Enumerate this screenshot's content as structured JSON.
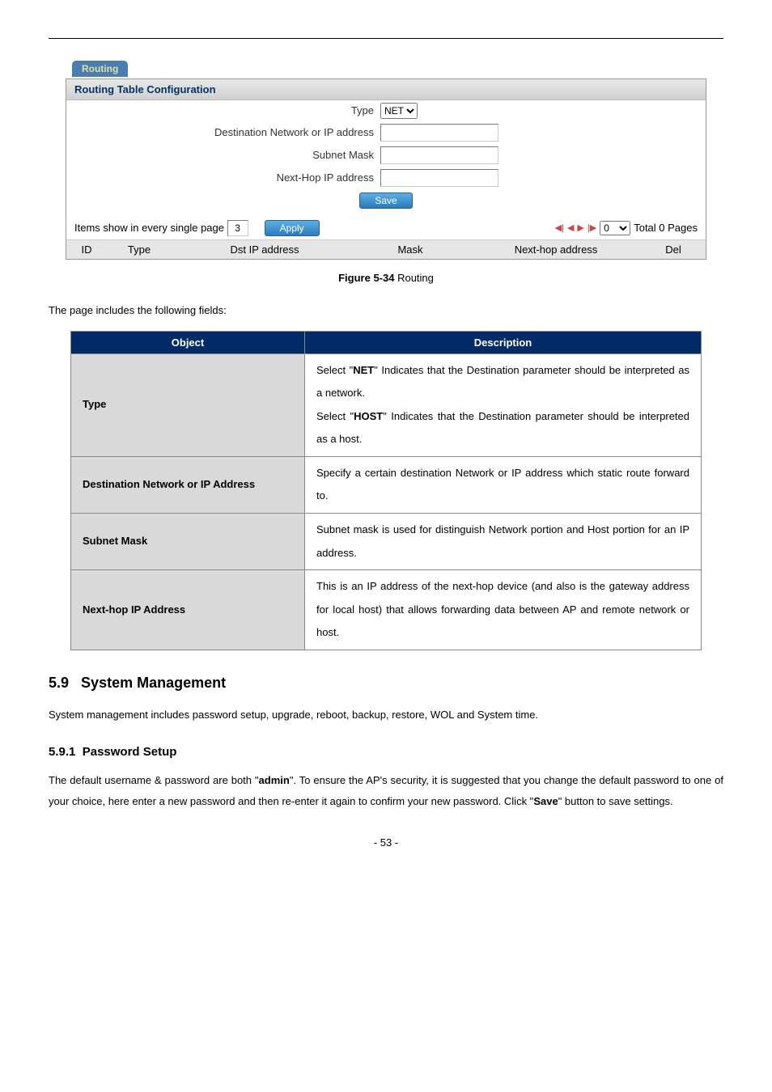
{
  "panel": {
    "tab": "Routing",
    "header": "Routing Table Configuration",
    "fields": {
      "type_label": "Type",
      "type_value": "NET",
      "dest_label": "Destination Network or IP address",
      "subnet_label": "Subnet Mask",
      "nexthop_label": "Next-Hop IP address"
    },
    "save_label": "Save",
    "pager": {
      "items_text_prefix": "Items show in every single page",
      "items_value": "3",
      "apply_label": "Apply",
      "page_select": "0",
      "total_text": "Total 0 Pages"
    },
    "table_headers": {
      "id": "ID",
      "type": "Type",
      "dst": "Dst IP address",
      "mask": "Mask",
      "nexthop": "Next-hop address",
      "del": "Del"
    }
  },
  "figure_caption_bold": "Figure 5-34",
  "figure_caption_rest": " Routing",
  "intro_text": "The page includes the following fields:",
  "desc_table": {
    "head_object": "Object",
    "head_desc": "Description",
    "rows": [
      {
        "k": "Type",
        "v": "Select \"<b>NET</b>\" Indicates that the Destination parameter should be interpreted as a network.<br>Select \"<b>HOST</b>\" Indicates that the Destination parameter should be interpreted as a host."
      },
      {
        "k": "Destination Network or IP Address",
        "v": "Specify a certain destination Network or IP address which static route forward to."
      },
      {
        "k": "Subnet Mask",
        "v": "Subnet mask is used for distinguish Network portion and Host portion for an IP address."
      },
      {
        "k": "Next-hop IP Address",
        "v": "This is an IP address of the next-hop device (and also is the gateway address for local host) that allows forwarding data between AP and remote network or host."
      }
    ]
  },
  "section": {
    "num": "5.9",
    "title": "System Management",
    "text": "System management includes password setup, upgrade, reboot, backup, restore, WOL and System time."
  },
  "subsection": {
    "num": "5.9.1",
    "title": "Password Setup",
    "text_parts": [
      "The default username & password are both \"",
      "admin",
      "\". To ensure the AP's security, it is suggested that you change the default password to one of your choice, here enter a new password and then re-enter it again to confirm your new password. Click \"",
      "Save",
      "\" button to save settings."
    ]
  },
  "page_number": "- 53 -"
}
